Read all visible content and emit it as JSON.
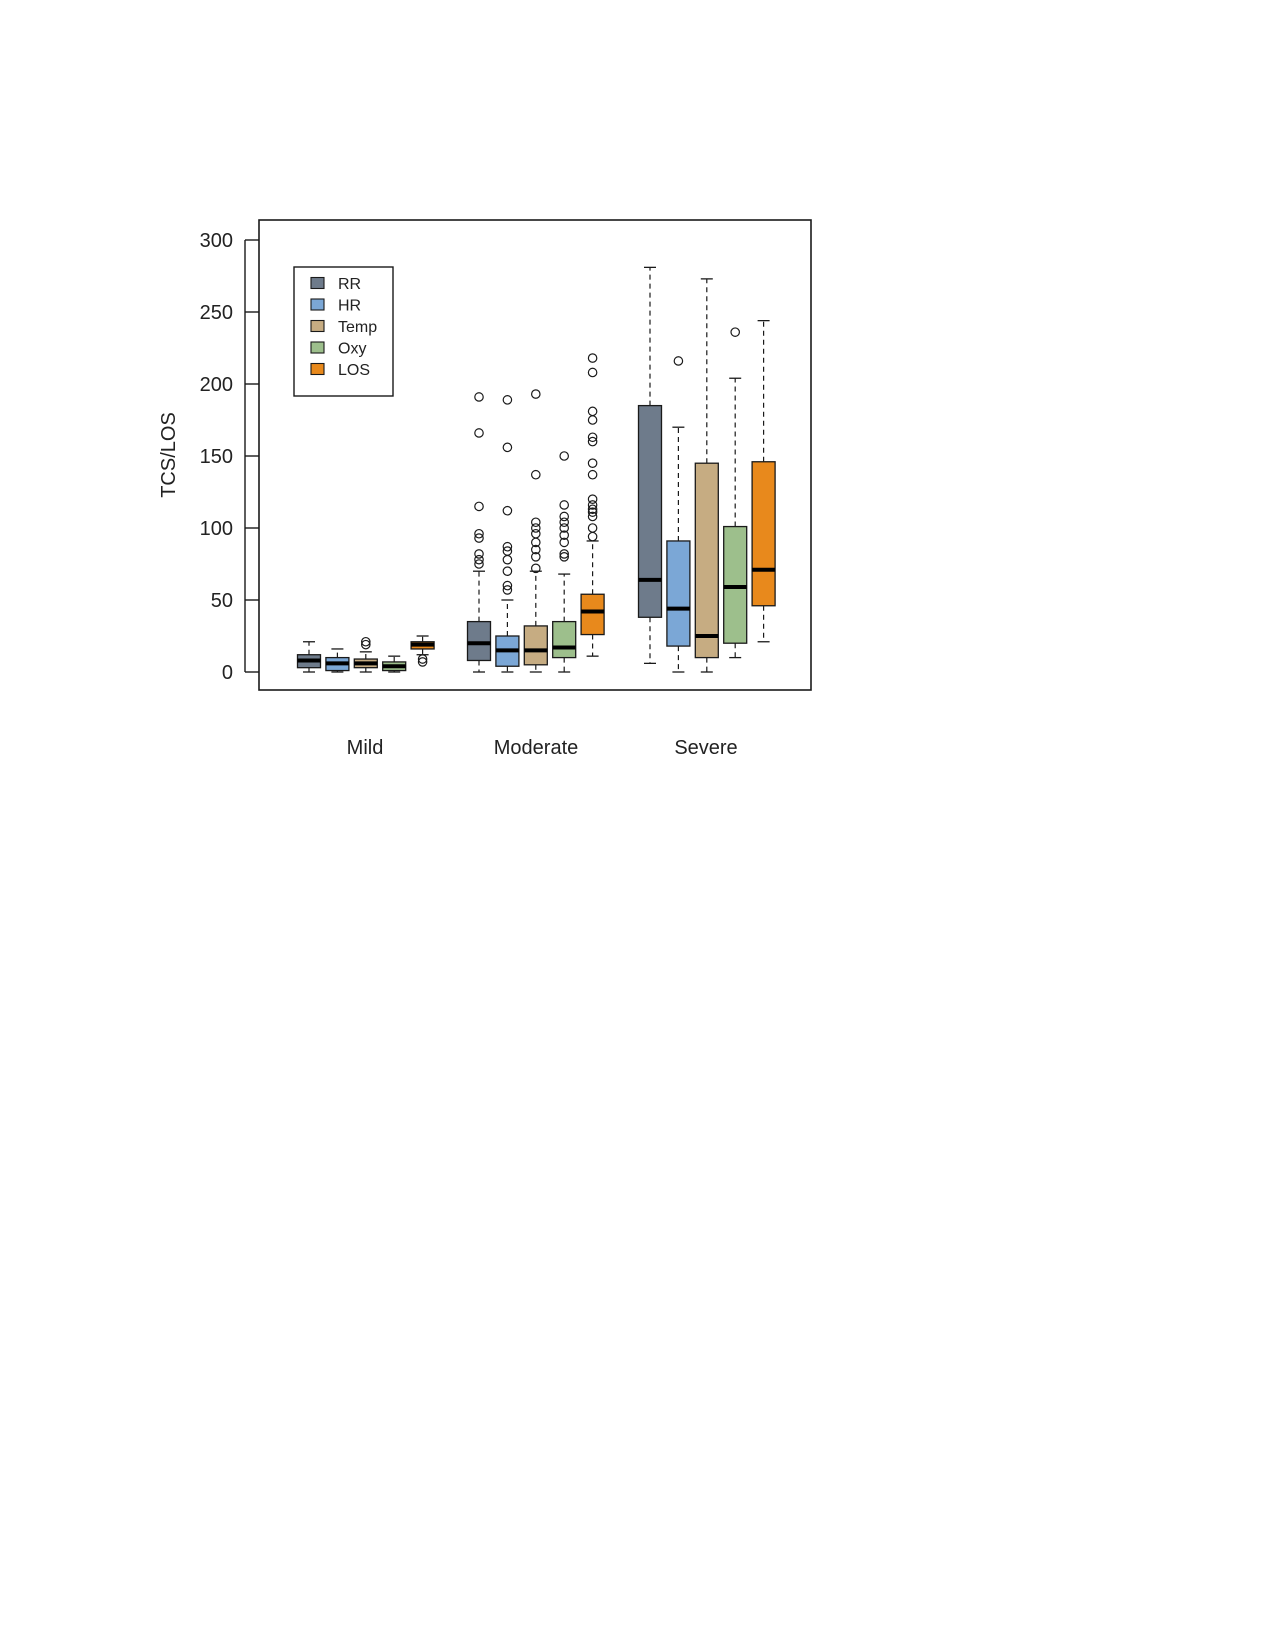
{
  "chart_data": {
    "type": "boxplot",
    "title": "",
    "xlabel": "",
    "ylabel": "TCS/LOS",
    "ylim": [
      -12,
      313
    ],
    "yticks": [
      0,
      50,
      100,
      150,
      200,
      250,
      300
    ],
    "grid": false,
    "legend_position": "top-left",
    "categories": [
      "Mild",
      "Moderate",
      "Severe"
    ],
    "series": [
      {
        "name": "RR",
        "color": "#6e7b8b",
        "boxes": [
          {
            "category": "Mild",
            "whisker_low": 0,
            "q1": 3,
            "median": 8,
            "q3": 12,
            "whisker_high": 21,
            "outliers": []
          },
          {
            "category": "Moderate",
            "whisker_low": 0,
            "q1": 8,
            "median": 20,
            "q3": 35,
            "whisker_high": 70,
            "outliers": [
              75,
              78,
              82,
              93,
              96,
              115,
              166,
              191
            ]
          },
          {
            "category": "Severe",
            "whisker_low": 6,
            "q1": 38,
            "median": 64,
            "q3": 185,
            "whisker_high": 281,
            "outliers": []
          }
        ]
      },
      {
        "name": "HR",
        "color": "#7ba7d6",
        "boxes": [
          {
            "category": "Mild",
            "whisker_low": 0,
            "q1": 1,
            "median": 6,
            "q3": 10,
            "whisker_high": 16,
            "outliers": []
          },
          {
            "category": "Moderate",
            "whisker_low": 0,
            "q1": 4,
            "median": 15,
            "q3": 25,
            "whisker_high": 50,
            "outliers": [
              57,
              60,
              70,
              78,
              84,
              87,
              112,
              156,
              189
            ]
          },
          {
            "category": "Severe",
            "whisker_low": 0,
            "q1": 18,
            "median": 44,
            "q3": 91,
            "whisker_high": 170,
            "outliers": [
              216
            ]
          }
        ]
      },
      {
        "name": "Temp",
        "color": "#c6ac82",
        "boxes": [
          {
            "category": "Mild",
            "whisker_low": 0,
            "q1": 3,
            "median": 6,
            "q3": 9,
            "whisker_high": 14,
            "outliers": [
              19,
              21
            ]
          },
          {
            "category": "Moderate",
            "whisker_low": 0,
            "q1": 5,
            "median": 15,
            "q3": 32,
            "whisker_high": 70,
            "outliers": [
              72,
              80,
              85,
              90,
              96,
              100,
              104,
              137,
              193
            ]
          },
          {
            "category": "Severe",
            "whisker_low": 0,
            "q1": 10,
            "median": 25,
            "q3": 145,
            "whisker_high": 273,
            "outliers": []
          }
        ]
      },
      {
        "name": "Oxy",
        "color": "#9dbf8c",
        "boxes": [
          {
            "category": "Mild",
            "whisker_low": 0,
            "q1": 1,
            "median": 4,
            "q3": 7,
            "whisker_high": 11,
            "outliers": []
          },
          {
            "category": "Moderate",
            "whisker_low": 0,
            "q1": 10,
            "median": 17,
            "q3": 35,
            "whisker_high": 68,
            "outliers": [
              80,
              82,
              90,
              95,
              100,
              104,
              108,
              116,
              150
            ]
          },
          {
            "category": "Severe",
            "whisker_low": 10,
            "q1": 20,
            "median": 59,
            "q3": 101,
            "whisker_high": 204,
            "outliers": [
              236
            ]
          }
        ]
      },
      {
        "name": "LOS",
        "color": "#e8891c",
        "boxes": [
          {
            "category": "Mild",
            "whisker_low": 12,
            "q1": 16,
            "median": 19,
            "q3": 21,
            "whisker_high": 25,
            "outliers": [
              7,
              9
            ]
          },
          {
            "category": "Moderate",
            "whisker_low": 11,
            "q1": 26,
            "median": 42,
            "q3": 54,
            "whisker_high": 91,
            "outliers": [
              94,
              100,
              108,
              111,
              113,
              116,
              120,
              137,
              145,
              160,
              163,
              175,
              181,
              208,
              218
            ]
          },
          {
            "category": "Severe",
            "whisker_low": 21,
            "q1": 46,
            "median": 71,
            "q3": 146,
            "whisker_high": 244,
            "outliers": []
          }
        ]
      }
    ]
  }
}
